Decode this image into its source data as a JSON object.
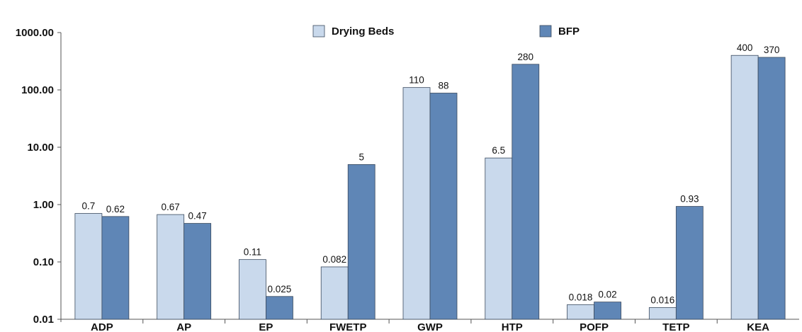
{
  "chart_data": {
    "type": "bar",
    "title": "",
    "xlabel": "",
    "ylabel": "",
    "yscale": "log",
    "ylim": [
      0.01,
      1000
    ],
    "yticks": [
      "0.01",
      "0.10",
      "1.00",
      "10.00",
      "100.00",
      "1000.00"
    ],
    "categories": [
      "ADP",
      "AP",
      "EP",
      "FWETP",
      "GWP",
      "HTP",
      "POFP",
      "TETP",
      "KEA"
    ],
    "series": [
      {
        "name": "Drying Beds",
        "color": "#c9d9ec",
        "values": [
          0.7,
          0.67,
          0.11,
          0.082,
          110,
          6.5,
          0.018,
          0.016,
          400
        ],
        "labels": [
          "0.7",
          "0.67",
          "0.11",
          "0.082",
          "110",
          "6.5",
          "0.018",
          "0.016",
          "400"
        ]
      },
      {
        "name": "BFP",
        "color": "#5f86b6",
        "values": [
          0.62,
          0.47,
          0.025,
          5,
          88,
          280,
          0.02,
          0.93,
          370
        ],
        "labels": [
          "0.62",
          "0.47",
          "0.025",
          "5",
          "88",
          "280",
          "0.02",
          "0.93",
          "370"
        ]
      }
    ],
    "legend": "top-center",
    "grid": false
  }
}
